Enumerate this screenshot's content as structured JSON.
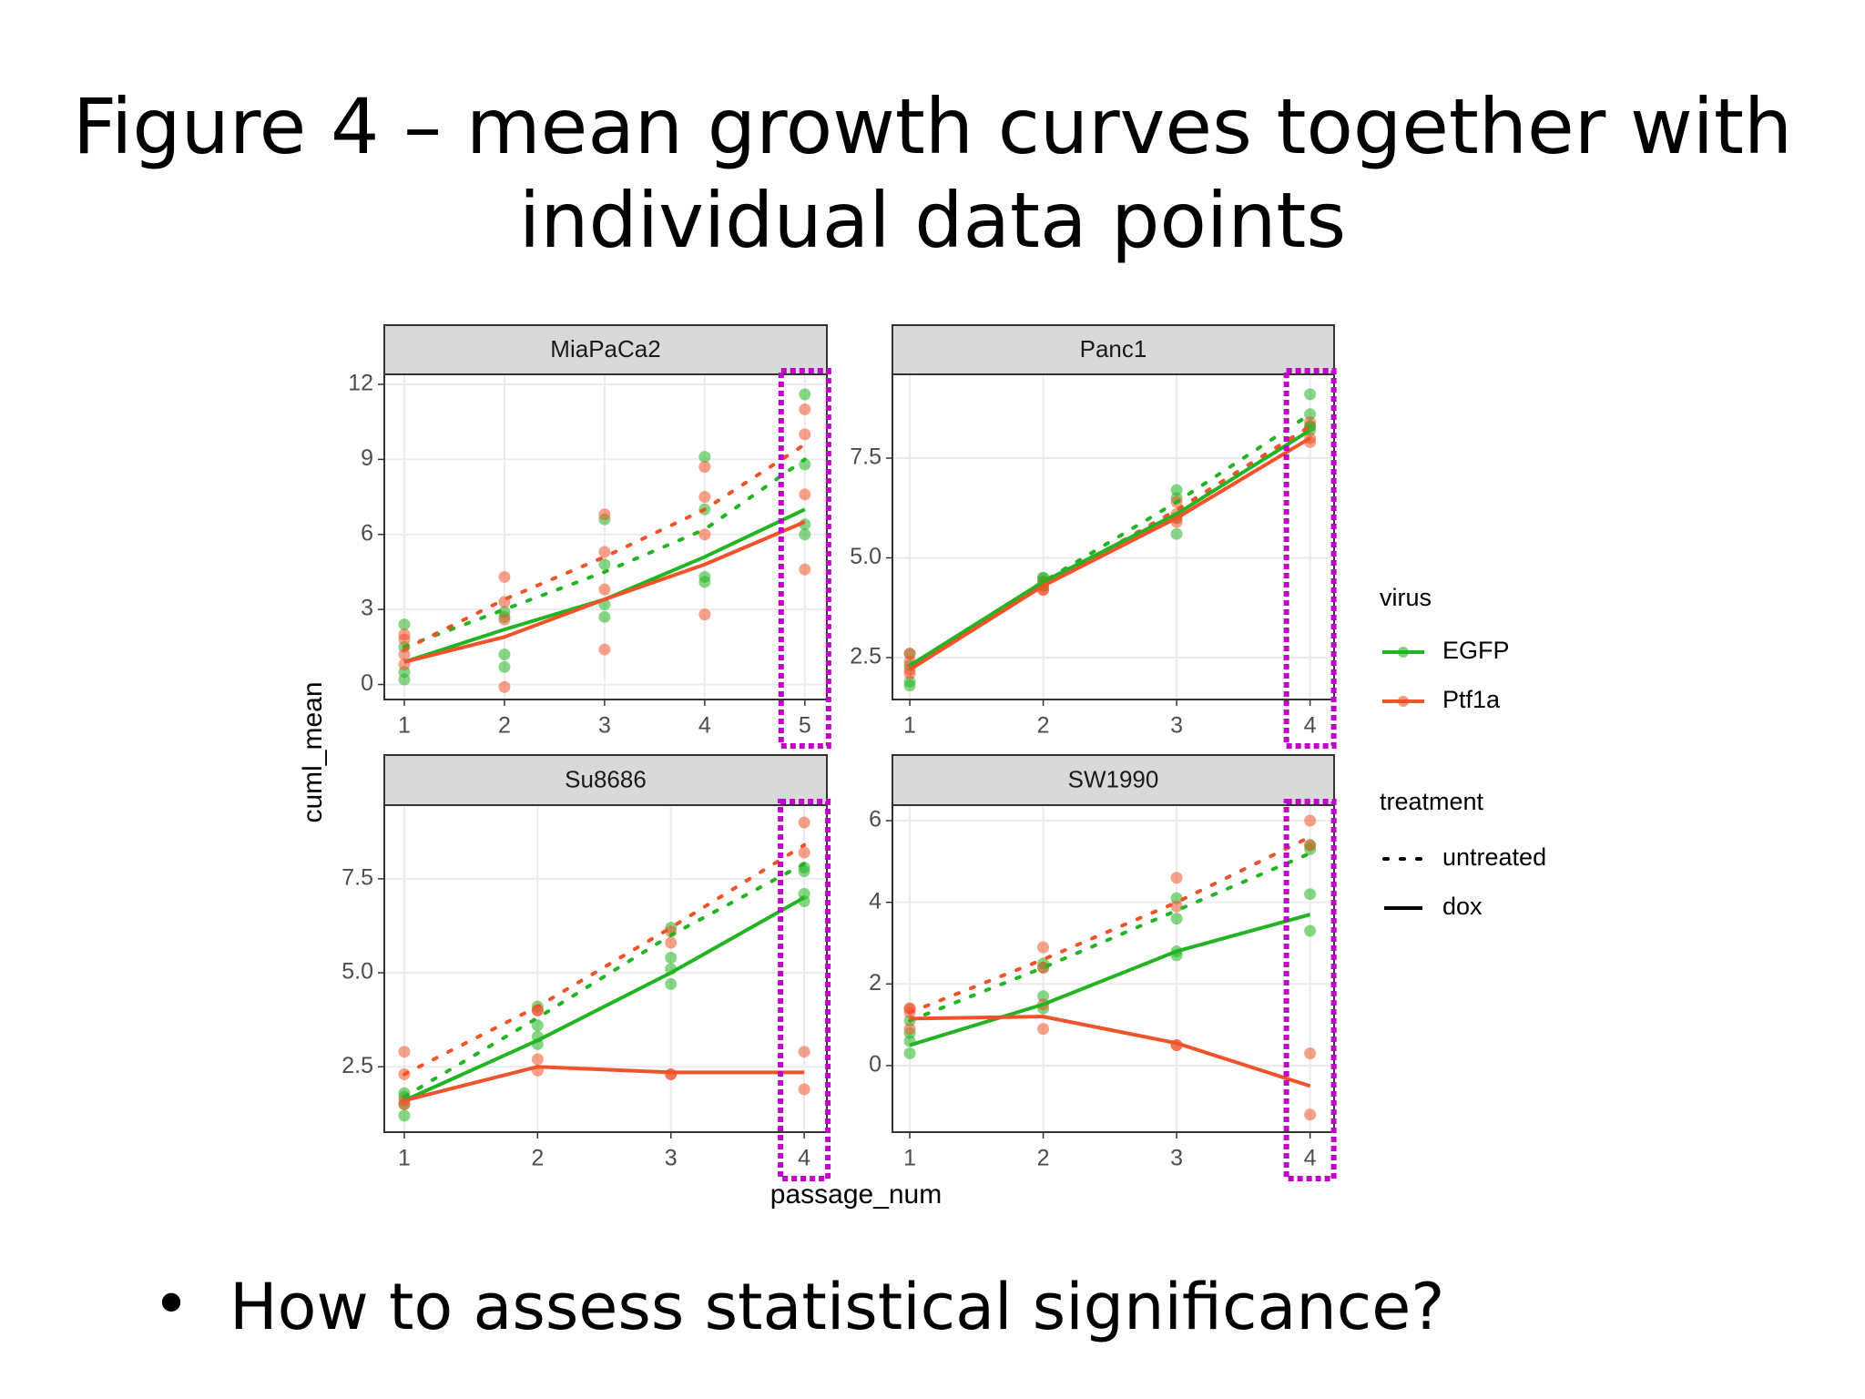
{
  "title": [
    "Figure 4 – mean growth curves together with",
    "individual data points"
  ],
  "bullet": "How to assess statistical significance?",
  "x_label": "passage_num",
  "y_label": "cuml_mean",
  "legend": {
    "virus": {
      "title": "virus",
      "items": [
        {
          "label": "EGFP",
          "color": "#22b422"
        },
        {
          "label": "Ptf1a",
          "color": "#f0522a"
        }
      ]
    },
    "treatment": {
      "title": "treatment",
      "items": [
        {
          "label": "untreated",
          "dash": "dotted"
        },
        {
          "label": "dox",
          "dash": "solid"
        }
      ]
    }
  },
  "chart_data": [
    {
      "type": "line",
      "title": "MiaPaCa2",
      "x": [
        1,
        2,
        3,
        4,
        5
      ],
      "xlim": [
        0.8,
        5.22
      ],
      "xticks": [
        1,
        2,
        3,
        4,
        5
      ],
      "ylim": [
        -0.6,
        12.4
      ],
      "yticks": [
        0,
        3,
        6,
        9,
        12
      ],
      "grid": true,
      "series": [
        {
          "virus": "EGFP",
          "treatment": "untreated",
          "values": [
            1.5,
            3.0,
            4.5,
            6.2,
            9.0
          ],
          "points_x": [
            1,
            1,
            2,
            2,
            3,
            3,
            4,
            4,
            5,
            5
          ],
          "points_y": [
            2.4,
            1.5,
            2.7,
            2.9,
            6.6,
            4.8,
            9.1,
            7.0,
            11.6,
            8.8
          ]
        },
        {
          "virus": "Ptf1a",
          "treatment": "untreated",
          "values": [
            1.4,
            3.4,
            5.1,
            7.0,
            9.6
          ],
          "points_x": [
            1,
            1,
            2,
            2,
            3,
            3,
            4,
            4,
            5,
            5
          ],
          "points_y": [
            1.8,
            1.2,
            4.3,
            3.3,
            6.8,
            5.3,
            8.7,
            7.5,
            11.0,
            10.0
          ]
        },
        {
          "virus": "EGFP",
          "treatment": "dox",
          "values": [
            0.9,
            2.2,
            3.4,
            5.1,
            7.0
          ],
          "points_x": [
            1,
            1,
            2,
            2,
            3,
            3,
            4,
            4,
            5,
            5
          ],
          "points_y": [
            0.5,
            0.2,
            1.2,
            0.7,
            2.7,
            3.2,
            4.3,
            4.1,
            6.4,
            6.0
          ]
        },
        {
          "virus": "Ptf1a",
          "treatment": "dox",
          "values": [
            0.9,
            1.9,
            3.4,
            4.8,
            6.5
          ],
          "points_x": [
            1,
            1,
            2,
            2,
            3,
            3,
            4,
            4,
            5,
            5
          ],
          "points_y": [
            2.0,
            0.8,
            -0.1,
            2.6,
            1.4,
            3.8,
            2.8,
            6.0,
            4.6,
            7.6
          ]
        }
      ]
    },
    {
      "type": "line",
      "title": "Panc1",
      "x": [
        1,
        2,
        3,
        4
      ],
      "xlim": [
        0.87,
        4.18
      ],
      "xticks": [
        1,
        2,
        3,
        4
      ],
      "ylim": [
        1.45,
        9.6
      ],
      "yticks": [
        2.5,
        {
          "value": 5,
          "label": "5.0"
        },
        7.5
      ],
      "grid": true,
      "series": [
        {
          "virus": "EGFP",
          "treatment": "untreated",
          "values": [
            2.3,
            4.4,
            6.4,
            8.6
          ],
          "points_x": [
            1,
            1,
            2,
            2,
            3,
            3,
            4,
            4
          ],
          "points_y": [
            2.6,
            2.3,
            4.5,
            4.4,
            6.7,
            6.5,
            9.1,
            8.6
          ]
        },
        {
          "virus": "Ptf1a",
          "treatment": "untreated",
          "values": [
            2.3,
            4.3,
            6.2,
            8.3
          ],
          "points_x": [
            1,
            1,
            2,
            2,
            3,
            3,
            4,
            4
          ],
          "points_y": [
            2.6,
            2.4,
            4.4,
            4.2,
            6.4,
            6.1,
            8.4,
            8.3
          ]
        },
        {
          "virus": "EGFP",
          "treatment": "dox",
          "values": [
            2.3,
            4.4,
            6.1,
            8.2
          ],
          "points_x": [
            1,
            1,
            2,
            2,
            3,
            3,
            4,
            4
          ],
          "points_y": [
            1.9,
            1.8,
            4.3,
            4.5,
            5.6,
            6.0,
            8.2,
            8.3
          ]
        },
        {
          "virus": "Ptf1a",
          "treatment": "dox",
          "values": [
            2.2,
            4.3,
            6.0,
            8.0
          ],
          "points_x": [
            1,
            1,
            2,
            2,
            3,
            3,
            4,
            4
          ],
          "points_y": [
            2.2,
            2.1,
            4.2,
            4.3,
            5.9,
            6.0,
            7.9,
            8.0
          ]
        }
      ]
    },
    {
      "type": "line",
      "title": "Su8686",
      "x": [
        1,
        2,
        3,
        4
      ],
      "xlim": [
        0.85,
        4.17
      ],
      "xticks": [
        1,
        2,
        3,
        4
      ],
      "ylim": [
        0.76,
        9.46
      ],
      "yticks": [
        2.5,
        {
          "value": 5,
          "label": "5.0"
        },
        7.5
      ],
      "grid": true,
      "series": [
        {
          "virus": "EGFP",
          "treatment": "untreated",
          "values": [
            1.7,
            3.8,
            6.0,
            7.9
          ],
          "points_x": [
            1,
            1,
            2,
            2,
            3,
            3,
            4,
            4
          ],
          "points_y": [
            1.8,
            1.7,
            4.1,
            3.6,
            6.2,
            5.4,
            7.8,
            7.7
          ]
        },
        {
          "virus": "Ptf1a",
          "treatment": "untreated",
          "values": [
            2.3,
            4.1,
            6.2,
            8.4
          ],
          "points_x": [
            1,
            1,
            2,
            2,
            3,
            3,
            4,
            4
          ],
          "points_y": [
            2.9,
            2.3,
            4.0,
            4.0,
            6.1,
            5.8,
            9.0,
            8.2
          ]
        },
        {
          "virus": "EGFP",
          "treatment": "dox",
          "values": [
            1.6,
            3.2,
            5.0,
            7.0
          ],
          "points_x": [
            1,
            1,
            2,
            2,
            3,
            3,
            4,
            4
          ],
          "points_y": [
            1.2,
            1.5,
            3.1,
            3.3,
            4.7,
            5.1,
            6.9,
            7.1
          ]
        },
        {
          "virus": "Ptf1a",
          "treatment": "dox",
          "values": [
            1.6,
            2.5,
            2.35,
            2.35
          ],
          "points_x": [
            1,
            1,
            2,
            2,
            3,
            3,
            4,
            4
          ],
          "points_y": [
            1.5,
            1.6,
            2.4,
            2.7,
            2.3,
            2.3,
            1.9,
            2.9
          ]
        }
      ]
    },
    {
      "type": "line",
      "title": "SW1990",
      "x": [
        1,
        2,
        3,
        4
      ],
      "xlim": [
        0.87,
        4.18
      ],
      "xticks": [
        1,
        2,
        3,
        4
      ],
      "ylim": [
        -1.63,
        6.38
      ],
      "yticks": [
        0,
        2,
        4,
        6
      ],
      "grid": true,
      "series": [
        {
          "virus": "EGFP",
          "treatment": "untreated",
          "values": [
            1.1,
            2.4,
            3.8,
            5.2
          ],
          "points_x": [
            1,
            1,
            2,
            2,
            3,
            3,
            4,
            4
          ],
          "points_y": [
            1.1,
            0.8,
            2.5,
            2.4,
            4.1,
            3.6,
            5.3,
            5.4
          ]
        },
        {
          "virus": "Ptf1a",
          "treatment": "untreated",
          "values": [
            1.3,
            2.6,
            4.0,
            5.6
          ],
          "points_x": [
            1,
            1,
            2,
            2,
            3,
            3,
            4,
            4
          ],
          "points_y": [
            1.4,
            1.3,
            2.9,
            2.4,
            4.6,
            3.9,
            6.0,
            5.4
          ]
        },
        {
          "virus": "EGFP",
          "treatment": "dox",
          "values": [
            0.5,
            1.5,
            2.8,
            3.7
          ],
          "points_x": [
            1,
            1,
            2,
            2,
            3,
            3,
            4,
            4
          ],
          "points_y": [
            0.3,
            0.6,
            1.4,
            1.7,
            2.7,
            2.8,
            4.2,
            3.3
          ]
        },
        {
          "virus": "Ptf1a",
          "treatment": "dox",
          "values": [
            1.15,
            1.2,
            0.55,
            -0.5
          ],
          "points_x": [
            1,
            1,
            2,
            2,
            3,
            3,
            4,
            4
          ],
          "points_y": [
            1.4,
            0.9,
            1.5,
            0.9,
            0.5,
            0.5,
            0.3,
            -1.2
          ]
        }
      ]
    }
  ]
}
